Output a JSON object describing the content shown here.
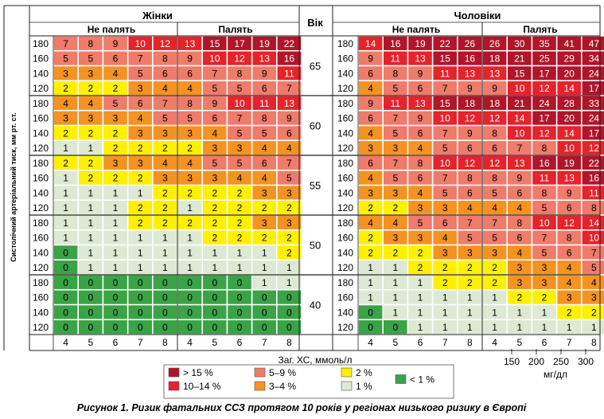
{
  "chart_data": {
    "type": "heatmap",
    "title": "Рисунок 1. Ризик фатальних ССЗ протягом 10 років у регіонах низького ризику в Європі",
    "ylabel": "Систолічний артеріальний тиск, мм рт. ст.",
    "xlabel": "Заг. ХС, ммоль/л",
    "xlabel2": "мг/дл",
    "sex_labels": [
      "Жінки",
      "Чоловіки"
    ],
    "age_label": "Вік",
    "smoke_labels": [
      "Не палять",
      "Палять"
    ],
    "cholesterol_mmol": [
      "4",
      "5",
      "6",
      "7",
      "8"
    ],
    "cholesterol_mgdl": [
      "150",
      "200",
      "250",
      "300"
    ],
    "sbp": [
      "180",
      "160",
      "140",
      "120"
    ],
    "ages": [
      "65",
      "60",
      "55",
      "50",
      "40"
    ],
    "legend": [
      {
        "label": "> 15 %",
        "color": "#b0152a"
      },
      {
        "label": "10–14 %",
        "color": "#e5232b"
      },
      {
        "label": "5–9 %",
        "color": "#ef7b6a"
      },
      {
        "label": "3–4 %",
        "color": "#f49321"
      },
      {
        "label": "2 %",
        "color": "#fff000"
      },
      {
        "label": "1 %",
        "color": "#dde9d2"
      },
      {
        "label": "< 1 %",
        "color": "#3aa346"
      }
    ],
    "women_nonsmoker": [
      [
        [
          7,
          8,
          9,
          10,
          12
        ],
        [
          5,
          5,
          6,
          7,
          8
        ],
        [
          3,
          3,
          4,
          5,
          6
        ],
        [
          2,
          2,
          2,
          3,
          4
        ]
      ],
      [
        [
          4,
          4,
          5,
          6,
          7
        ],
        [
          3,
          3,
          3,
          4,
          5
        ],
        [
          2,
          2,
          2,
          3,
          3
        ],
        [
          1,
          1,
          2,
          2,
          2
        ]
      ],
      [
        [
          2,
          2,
          3,
          3,
          4
        ],
        [
          1,
          2,
          2,
          2,
          3
        ],
        [
          1,
          1,
          1,
          1,
          2
        ],
        [
          1,
          1,
          1,
          2,
          2
        ]
      ],
      [
        [
          1,
          1,
          1,
          2,
          2
        ],
        [
          1,
          1,
          1,
          1,
          1
        ],
        [
          0,
          1,
          1,
          1,
          1
        ],
        [
          0,
          1,
          1,
          1,
          1
        ]
      ],
      [
        [
          0,
          0,
          0,
          0,
          0
        ],
        [
          0,
          0,
          0,
          0,
          0
        ],
        [
          0,
          0,
          0,
          0,
          0
        ],
        [
          0,
          0,
          0,
          0,
          0
        ]
      ]
    ],
    "women_smoker": [
      [
        [
          13,
          15,
          17,
          19,
          22
        ],
        [
          9,
          10,
          12,
          13,
          16
        ],
        [
          6,
          7,
          8,
          9,
          11
        ],
        [
          4,
          5,
          5,
          6,
          7
        ]
      ],
      [
        [
          8,
          9,
          10,
          11,
          13
        ],
        [
          5,
          6,
          7,
          8,
          9
        ],
        [
          3,
          4,
          5,
          5,
          6
        ],
        [
          2,
          3,
          3,
          4,
          4
        ]
      ],
      [
        [
          4,
          5,
          5,
          6,
          7
        ],
        [
          3,
          3,
          4,
          4,
          5
        ],
        [
          2,
          2,
          2,
          3,
          3
        ],
        [
          1,
          2,
          2,
          2,
          2
        ]
      ],
      [
        [
          2,
          2,
          2,
          3,
          3
        ],
        [
          1,
          2,
          2,
          2,
          2
        ],
        [
          1,
          1,
          1,
          1,
          2
        ],
        [
          1,
          1,
          1,
          1,
          1
        ]
      ],
      [
        [
          0,
          0,
          0,
          1,
          1
        ],
        [
          0,
          0,
          0,
          0,
          0
        ],
        [
          0,
          0,
          0,
          0,
          0
        ],
        [
          0,
          0,
          0,
          0,
          0
        ]
      ]
    ],
    "men_nonsmoker": [
      [
        [
          14,
          16,
          19,
          22,
          26
        ],
        [
          9,
          11,
          13,
          15,
          16
        ],
        [
          6,
          8,
          9,
          11,
          13
        ],
        [
          4,
          5,
          6,
          7,
          9
        ]
      ],
      [
        [
          9,
          11,
          13,
          15,
          18
        ],
        [
          6,
          7,
          9,
          10,
          12
        ],
        [
          4,
          5,
          6,
          7,
          9
        ],
        [
          3,
          3,
          4,
          5,
          6
        ]
      ],
      [
        [
          6,
          7,
          8,
          10,
          12
        ],
        [
          4,
          5,
          6,
          7,
          8
        ],
        [
          3,
          3,
          4,
          5,
          6
        ],
        [
          2,
          2,
          3,
          3,
          4
        ]
      ],
      [
        [
          4,
          4,
          5,
          6,
          7
        ],
        [
          2,
          3,
          3,
          4,
          5
        ],
        [
          2,
          2,
          2,
          3,
          3
        ],
        [
          1,
          1,
          2,
          2,
          2
        ]
      ],
      [
        [
          1,
          1,
          1,
          2,
          2
        ],
        [
          1,
          1,
          1,
          1,
          1
        ],
        [
          0,
          1,
          1,
          1,
          1
        ],
        [
          0,
          0,
          1,
          1,
          1
        ]
      ]
    ],
    "men_smoker": [
      [
        [
          26,
          30,
          35,
          41,
          47
        ],
        [
          18,
          21,
          25,
          29,
          34
        ],
        [
          13,
          15,
          17,
          20,
          24
        ],
        [
          9,
          10,
          12,
          14,
          17
        ]
      ],
      [
        [
          18,
          21,
          24,
          28,
          33
        ],
        [
          12,
          14,
          17,
          20,
          24
        ],
        [
          8,
          10,
          12,
          14,
          17
        ],
        [
          6,
          7,
          8,
          10,
          12
        ]
      ],
      [
        [
          12,
          13,
          16,
          19,
          22
        ],
        [
          8,
          9,
          11,
          13,
          16
        ],
        [
          5,
          6,
          8,
          9,
          11
        ],
        [
          4,
          4,
          5,
          6,
          8
        ]
      ],
      [
        [
          7,
          8,
          10,
          12,
          14
        ],
        [
          5,
          6,
          7,
          8,
          10
        ],
        [
          3,
          4,
          5,
          6,
          7
        ],
        [
          2,
          3,
          3,
          4,
          5
        ]
      ],
      [
        [
          2,
          3,
          3,
          4,
          4
        ],
        [
          1,
          2,
          2,
          3,
          3
        ],
        [
          1,
          1,
          1,
          2,
          2
        ],
        [
          1,
          1,
          1,
          1,
          1
        ]
      ]
    ]
  },
  "caption": "Рисунок 1. Ризик фатальних ССЗ протягом 10 років у регіонах низького ризику в Європі"
}
